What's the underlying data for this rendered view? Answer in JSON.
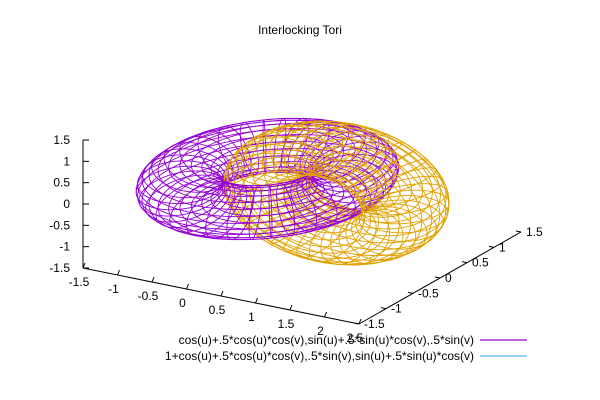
{
  "chart_data": {
    "type": "surface",
    "title": "Interlocking Tori",
    "xlim": [
      -1.5,
      2.5
    ],
    "ylim": [
      -1.5,
      1.5
    ],
    "zlim": [
      -1.5,
      1.5
    ],
    "x_ticks": [
      "-1.5",
      "-1",
      "-0.5",
      "0",
      "0.5",
      "1",
      "1.5",
      "2",
      "2.5"
    ],
    "y_ticks": [
      "-1.5",
      "-1",
      "-0.5",
      "0",
      "0.5",
      "1",
      "1.5"
    ],
    "z_ticks": [
      "-1.5",
      "-1",
      "-0.5",
      "0",
      "0.5",
      "1",
      "1.5"
    ],
    "grid": false,
    "legend_position": "bottom-right",
    "series": [
      {
        "name": "cos(u)+.5*cos(u)*cos(v),sin(u)+.5*sin(u)*cos(v),.5*sin(v)",
        "color": "#9400d3",
        "major_radius": 1.0,
        "minor_radius": 0.5,
        "center": [
          0,
          0,
          0
        ],
        "orientation": "xy-plane"
      },
      {
        "name": "1+cos(u)+.5*cos(u)*cos(v),.5*sin(v),sin(u)+.5*sin(u)*cos(v)",
        "color": "#e0a000",
        "legend_color": "#56b4e9",
        "major_radius": 1.0,
        "minor_radius": 0.5,
        "center": [
          1,
          0,
          0
        ],
        "orientation": "xz-plane"
      }
    ]
  }
}
